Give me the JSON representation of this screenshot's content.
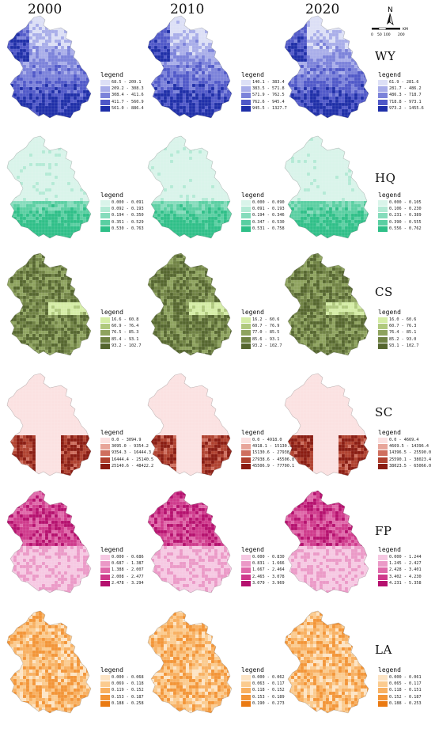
{
  "years": [
    "2000",
    "2010",
    "2020"
  ],
  "scale_bar": {
    "north": "N",
    "ticks": [
      "0",
      "50",
      "100",
      "200"
    ],
    "unit": "KM"
  },
  "rows": [
    {
      "label": "WY",
      "colors": [
        "#dcdff6",
        "#a8ade9",
        "#7b82da",
        "#4f58c8",
        "#1e2ea8"
      ],
      "legends": [
        {
          "title": "legend",
          "items": [
            "68.5 - 209.1",
            "209.2 - 308.3",
            "308.4 - 411.6",
            "411.7 - 560.9",
            "561.0 - 886.4"
          ]
        },
        {
          "title": "legend",
          "items": [
            "140.1 - 383.4",
            "383.5 - 571.8",
            "571.9 - 762.5",
            "762.6 - 945.4",
            "945.5 - 1327.7"
          ]
        },
        {
          "title": "legend",
          "items": [
            "61.9 - 281.6",
            "281.7 - 486.2",
            "486.3 - 718.7",
            "718.8 - 973.1",
            "973.2 - 1455.6"
          ]
        }
      ]
    },
    {
      "label": "HQ",
      "colors": [
        "#d9f4ea",
        "#b3ead5",
        "#86dcbc",
        "#5acfa2",
        "#2fbf88"
      ],
      "legends": [
        {
          "title": "legend",
          "items": [
            "0.000 - 0.091",
            "0.092 - 0.193",
            "0.194 - 0.350",
            "0.351 - 0.529",
            "0.530 - 0.763"
          ]
        },
        {
          "title": "legend",
          "items": [
            "0.000 - 0.090",
            "0.091 - 0.193",
            "0.194 - 0.346",
            "0.347 - 0.530",
            "0.531 - 0.758"
          ]
        },
        {
          "title": "legend",
          "items": [
            "0.000 - 0.105",
            "0.106 - 0.230",
            "0.231 - 0.389",
            "0.390 - 0.555",
            "0.556 - 0.762"
          ]
        }
      ]
    },
    {
      "label": "CS",
      "colors": [
        "#d5eda6",
        "#b0c97e",
        "#8ea35e",
        "#6f8243",
        "#55662e"
      ],
      "legends": [
        {
          "title": "legend",
          "items": [
            "16.6 - 60.8",
            "60.9 - 76.4",
            "76.5 - 85.3",
            "85.4 - 93.1",
            "93.2 - 102.7"
          ]
        },
        {
          "title": "legend",
          "items": [
            "16.2 - 60.6",
            "60.7 - 76.9",
            "77.0 - 85.5",
            "85.6 - 93.1",
            "93.2 - 102.7"
          ]
        },
        {
          "title": "legend",
          "items": [
            "16.0 - 60.6",
            "60.7 - 76.3",
            "76.4 - 85.1",
            "85.2 - 93.0",
            "93.1 - 102.7"
          ]
        }
      ]
    },
    {
      "label": "SC",
      "colors": [
        "#fbe1e1",
        "#e7a59a",
        "#cf6f5e",
        "#b0412f",
        "#8a1c12"
      ],
      "legends": [
        {
          "title": "legend",
          "items": [
            "0.0 - 3094.9",
            "3095.0 - 9354.2",
            "9354.3 - 16444.3",
            "16444.4 - 25140.5",
            "25140.6 - 48422.2"
          ]
        },
        {
          "title": "legend",
          "items": [
            "0.0 - 4918.0",
            "4918.1 - 15130.5",
            "15130.6 - 27938.5",
            "27938.6 - 45506.8",
            "45506.9 - 77700.1"
          ]
        },
        {
          "title": "legend",
          "items": [
            "0.0 - 4669.4",
            "4669.5 - 14396.4",
            "14396.5 - 25590.0",
            "25590.1 - 38023.4",
            "38023.5 - 65066.0"
          ]
        }
      ]
    },
    {
      "label": "FP",
      "colors": [
        "#f6c8e2",
        "#eb99c7",
        "#df68a9",
        "#cf3a8c",
        "#b5106e"
      ],
      "legends": [
        {
          "title": "legend",
          "items": [
            "0.000 - 0.686",
            "0.687 - 1.387",
            "1.388 - 2.007",
            "2.008 - 2.477",
            "2.478 - 3.294"
          ]
        },
        {
          "title": "legend",
          "items": [
            "0.000 - 0.830",
            "0.831 - 1.666",
            "1.667 - 2.464",
            "2.465 - 3.078",
            "3.079 - 3.969"
          ]
        },
        {
          "title": "legend",
          "items": [
            "0.000 - 1.244",
            "1.245 - 2.427",
            "2.428 - 3.401",
            "3.402 - 4.230",
            "4.231 - 5.358"
          ]
        }
      ]
    },
    {
      "label": "LA",
      "colors": [
        "#fde4c4",
        "#fbcb8f",
        "#f8b061",
        "#f39537",
        "#ea7a12"
      ],
      "legends": [
        {
          "title": "legend",
          "items": [
            "0.000 - 0.068",
            "0.069 - 0.118",
            "0.119 - 0.152",
            "0.153 - 0.187",
            "0.188 - 0.258"
          ]
        },
        {
          "title": "legend",
          "items": [
            "0.000 - 0.062",
            "0.063 - 0.117",
            "0.118 - 0.152",
            "0.153 - 0.189",
            "0.190 - 0.273"
          ]
        },
        {
          "title": "legend",
          "items": [
            "0.000 - 0.061",
            "0.065 - 0.117",
            "0.118 - 0.151",
            "0.152 - 0.187",
            "0.188 - 0.253"
          ]
        }
      ]
    }
  ]
}
